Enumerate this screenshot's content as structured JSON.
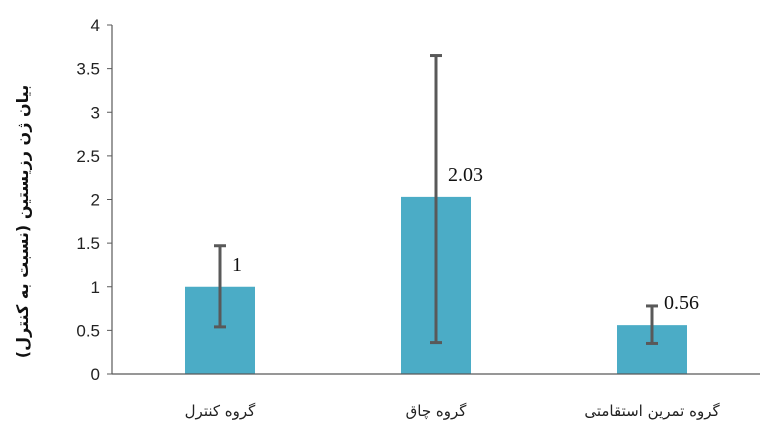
{
  "chart_data": {
    "type": "bar",
    "title": "",
    "xlabel": "",
    "ylabel": "بیان ژن رزیستین (نسبت به کنترل)",
    "categories": [
      "گروه کنترل",
      "گروه چاق",
      "گروه تمرین استقامتی"
    ],
    "values": [
      1,
      2.03,
      0.56
    ],
    "data_labels": [
      "1",
      "2.03",
      "0.56"
    ],
    "error_upper": [
      1.47,
      3.65,
      0.78
    ],
    "error_lower": [
      0.54,
      0.36,
      0.35
    ],
    "ylim": [
      0,
      4
    ],
    "yticks": [
      "0",
      "0.5",
      "1",
      "1.5",
      "2",
      "2.5",
      "3",
      "3.5",
      "4"
    ],
    "grid": false,
    "legend": "none",
    "colors": {
      "bar": "#4BACC6",
      "error_bar": "#595959",
      "axis": "#595959"
    }
  }
}
